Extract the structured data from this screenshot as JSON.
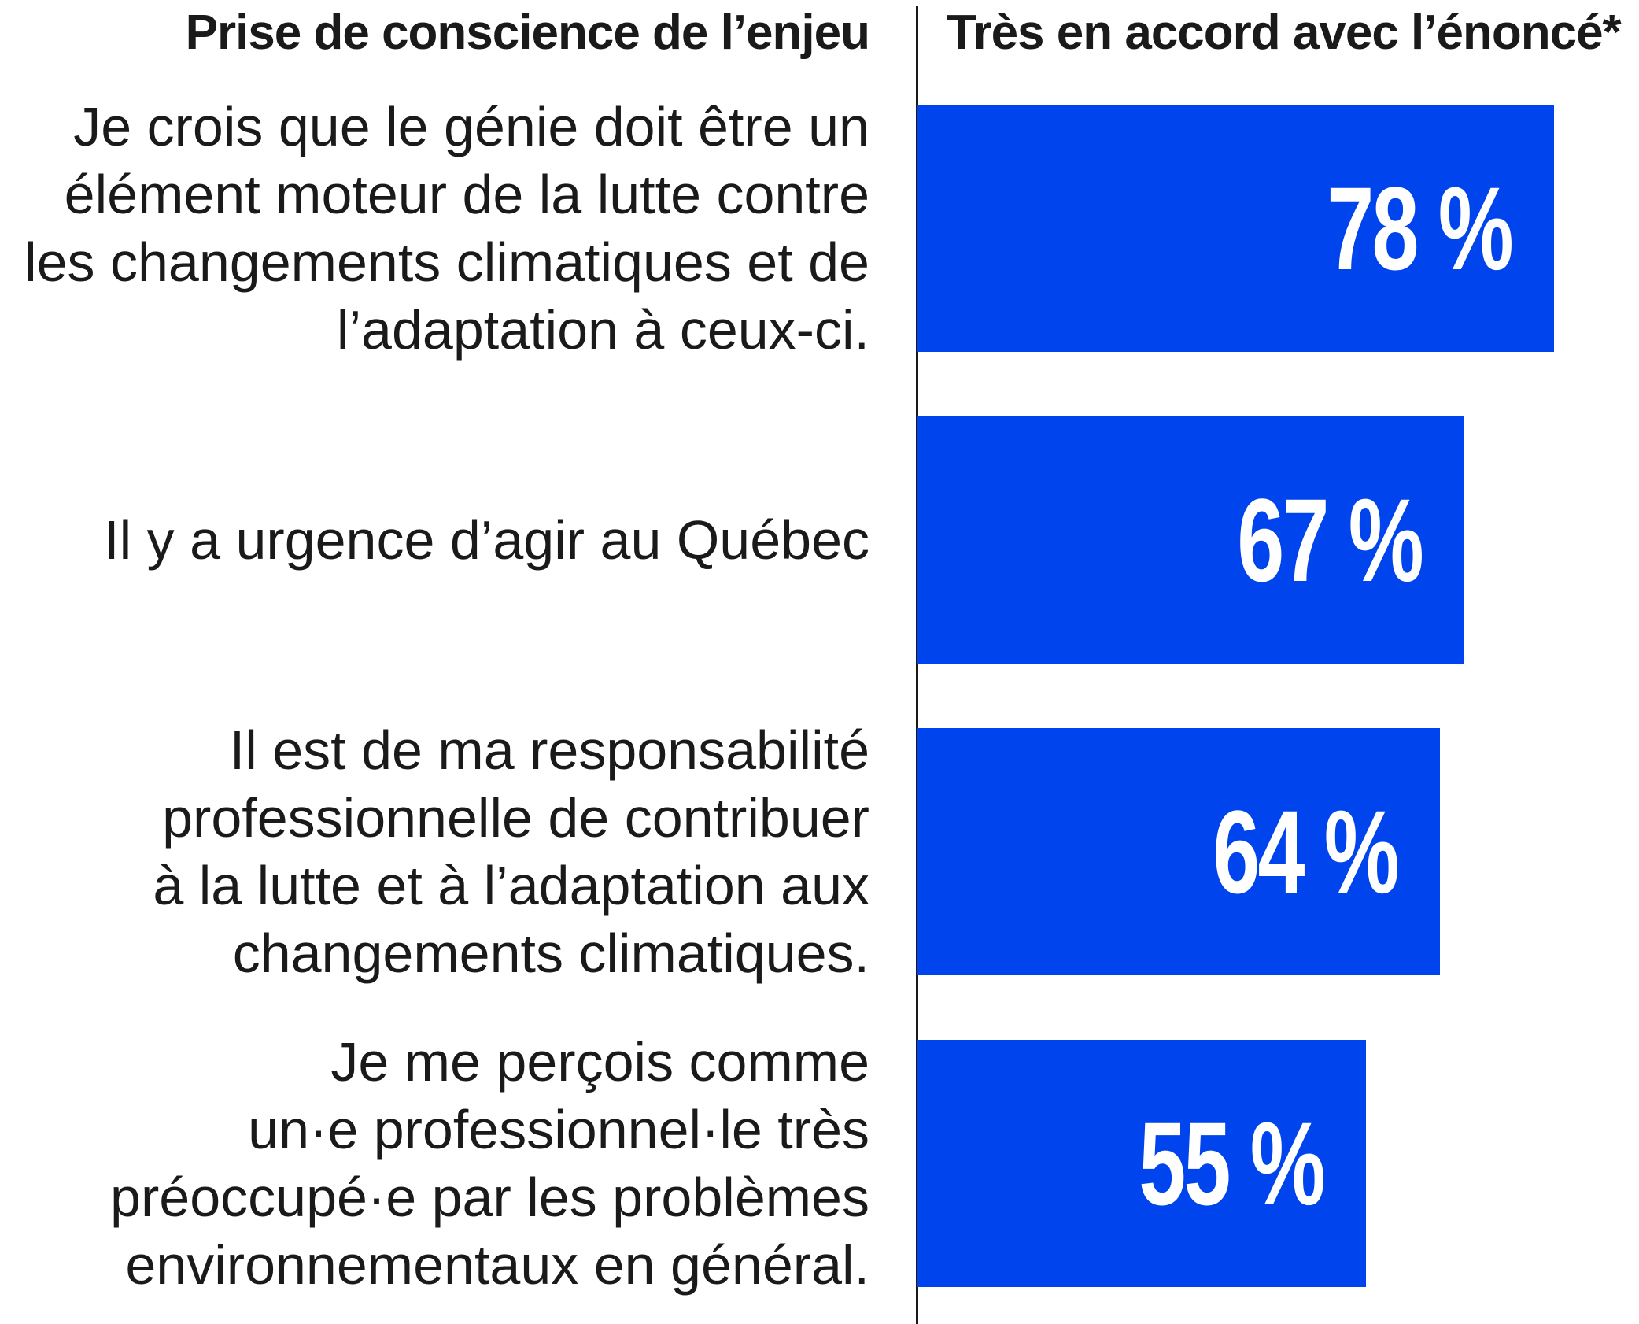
{
  "colors": {
    "bar": "#0044ee",
    "text": "#1a1a1a",
    "value_text": "#ffffff"
  },
  "chart_data": {
    "type": "bar",
    "orientation": "horizontal",
    "title": "",
    "category_header": "Prise de conscience de l’enjeu",
    "value_header": "Très en accord avec l’énoncé*",
    "categories": [
      "Je crois que le génie doit être un\nélément moteur de la lutte contre\nles changements climatiques et de\nl’adaptation à ceux-ci.",
      "Il y a urgence d’agir au Québec",
      "Il est de ma responsabilité\nprofessionnelle de contribuer\nà la lutte et à l’adaptation aux\nchangements climatiques.",
      "Je me perçois comme\nun·e professionnel·le très\npréoccupé·e par les problèmes\nenvironnementaux en général."
    ],
    "values": [
      78,
      67,
      64,
      55
    ],
    "value_labels": [
      "78 %",
      "67 %",
      "64 %",
      "55 %"
    ],
    "xlim": [
      0,
      100
    ],
    "grid": false,
    "legend": "none"
  }
}
